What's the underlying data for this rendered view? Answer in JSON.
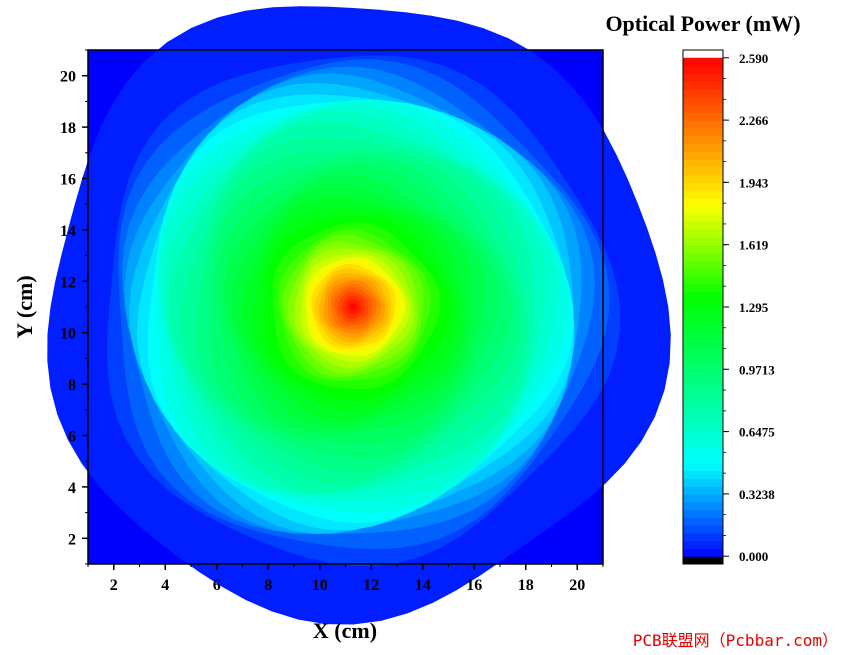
{
  "chart_data": {
    "type": "heatmap",
    "subtype": "contour",
    "xlabel": "X (cm)",
    "ylabel": "Y (cm)",
    "xlim": [
      1,
      21
    ],
    "ylim": [
      1,
      21
    ],
    "x_ticks": [
      2,
      4,
      6,
      8,
      10,
      12,
      14,
      16,
      18,
      20
    ],
    "y_ticks": [
      2,
      4,
      6,
      8,
      10,
      12,
      14,
      16,
      18,
      20
    ],
    "colorbar": {
      "title": "Optical Power (mW)",
      "min": 0.0,
      "max": 2.59,
      "tick_values": [
        2.59,
        2.266,
        1.943,
        1.619,
        1.295,
        0.9713,
        0.6475,
        0.3238,
        0.0
      ],
      "tick_labels": [
        "2.590",
        "2.266",
        "1.943",
        "1.619",
        "1.295",
        "0.9713",
        "0.6475",
        "0.3238",
        "0.000"
      ],
      "levels": 64,
      "colormap": [
        "#000000",
        "#0000ff",
        "#00ffff",
        "#00ff00",
        "#ffff00",
        "#ff0000",
        "#ffffff"
      ]
    },
    "field": {
      "peak_x": 11.3,
      "peak_y": 11.0,
      "peak_value": 2.59,
      "background_value": 0.1,
      "profile": [
        {
          "r": 0,
          "value": 2.59
        },
        {
          "r": 2,
          "value": 1.75
        },
        {
          "r": 3,
          "value": 1.45
        },
        {
          "r": 5,
          "value": 1.1
        },
        {
          "r": 7,
          "value": 0.8
        },
        {
          "r": 8,
          "value": 0.6
        },
        {
          "r": 9,
          "value": 0.3
        },
        {
          "r": 10,
          "value": 0.15
        },
        {
          "r": 12,
          "value": 0.1
        }
      ]
    },
    "grid": false
  },
  "watermark": "PCB联盟网（Pcbbar.com）"
}
